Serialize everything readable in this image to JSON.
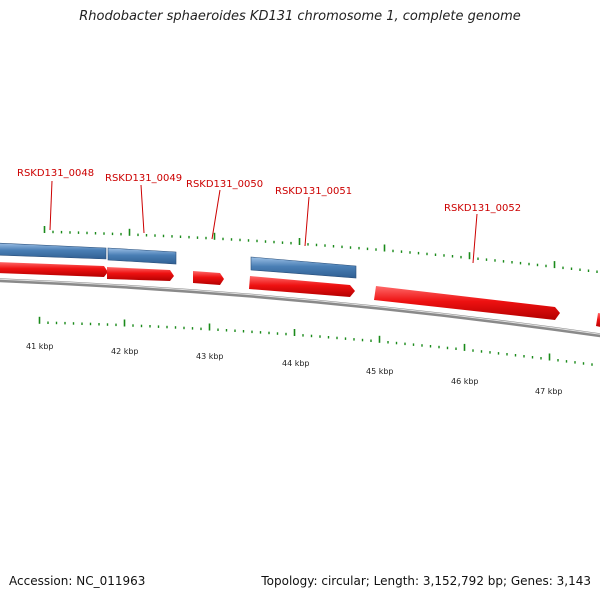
{
  "title": "Rhodobacter sphaeroides KD131 chromosome 1, complete genome",
  "footer": {
    "accession": "Accession: NC_011963",
    "summary": "Topology: circular; Length: 3,152,792 bp; Genes: 3,143"
  },
  "colors": {
    "gene_label": "#cc0000",
    "cds_forward": "#ee1111",
    "gene_blue": "#4a7fb5",
    "tick": "#1a8a1a",
    "backbone": "#8a8a8a"
  },
  "gene_labels": [
    {
      "text": "RSKD131_0048"
    },
    {
      "text": "RSKD131_0049"
    },
    {
      "text": "RSKD131_0050"
    },
    {
      "text": "RSKD131_0051"
    },
    {
      "text": "RSKD131_0052"
    }
  ],
  "kbp_labels": [
    "41 kbp",
    "42 kbp",
    "43 kbp",
    "44 kbp",
    "45 kbp",
    "46 kbp",
    "47 kbp"
  ]
}
